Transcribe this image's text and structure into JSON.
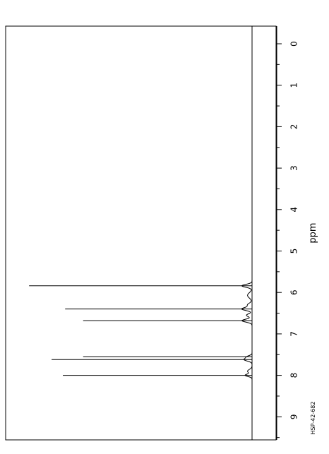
{
  "chart_data": {
    "type": "line",
    "title": "",
    "xlabel": "ppm",
    "ylabel": "",
    "xlim": [
      -0.5,
      9.5
    ],
    "x_ticks": [
      0,
      1,
      2,
      3,
      4,
      5,
      6,
      7,
      8,
      9
    ],
    "tick_labels": [
      "0",
      "1",
      "2",
      "3",
      "4",
      "5",
      "6",
      "7",
      "8",
      "9"
    ],
    "minor_tick_step": 0.5,
    "grid": false,
    "peaks": [
      {
        "ppm": 5.84,
        "intensity": 0.99
      },
      {
        "ppm": 6.4,
        "intensity": 0.83
      },
      {
        "ppm": 6.68,
        "intensity": 0.75
      },
      {
        "ppm": 7.55,
        "intensity": 0.75
      },
      {
        "ppm": 7.62,
        "intensity": 0.89
      },
      {
        "ppm": 8.0,
        "intensity": 0.84
      }
    ],
    "annotation": "HSP-42-682"
  }
}
